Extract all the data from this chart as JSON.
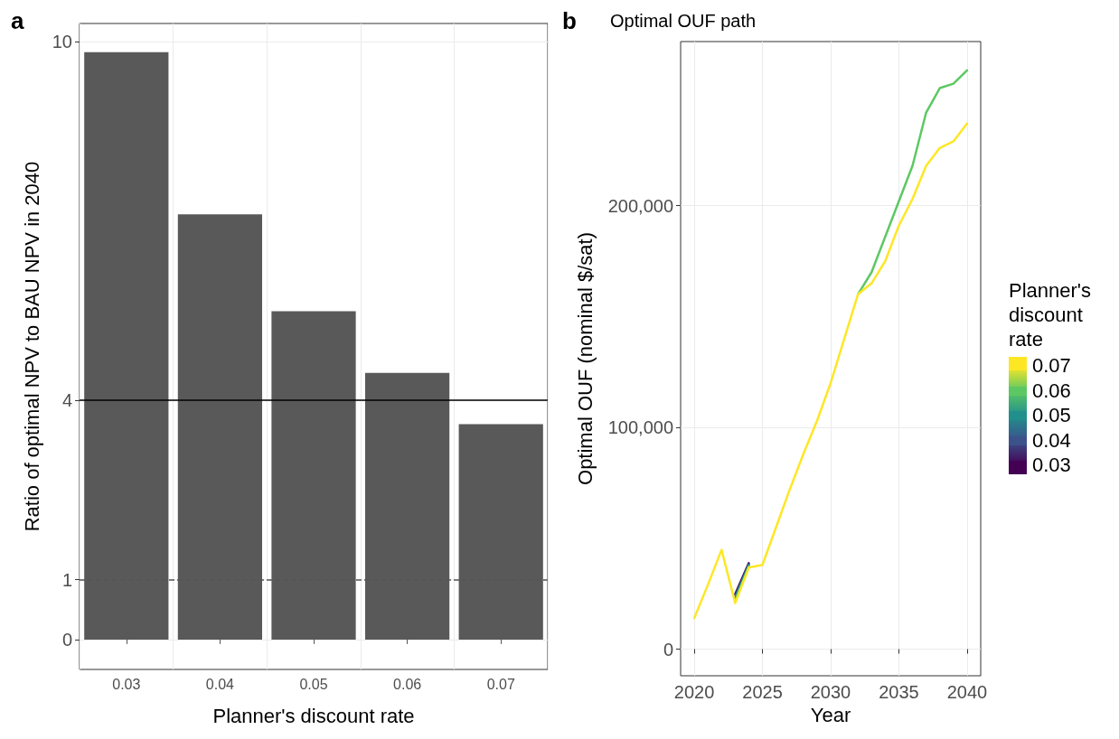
{
  "chart_data": [
    {
      "type": "bar",
      "annotations": [
        "a"
      ],
      "xlabel": "Planner's discount rate",
      "ylabel": "Ratio of optimal NPV to BAU NPV in 2040",
      "categories": [
        "0.03",
        "0.04",
        "0.05",
        "0.06",
        "0.07"
      ],
      "values": [
        9.82,
        7.11,
        5.49,
        4.46,
        3.6
      ],
      "color": "#595959",
      "ylim": [
        -0.5,
        10.3
      ],
      "yticks": [
        0,
        1,
        4,
        10
      ],
      "grid": true,
      "ref_lines": [
        {
          "axis": "y",
          "value": 4,
          "color": "#000000",
          "line_style": "solid"
        },
        {
          "axis": "y",
          "value": 1,
          "color": "#555555",
          "line_style": "dashed"
        }
      ]
    },
    {
      "type": "line",
      "annotations": [
        "b"
      ],
      "title": "Optimal OUF path",
      "xlabel": "Year",
      "ylabel": "Optimal OUF (nominal $/sat)",
      "legend_title": "Planner's discount rate",
      "legend": "right",
      "grid": true,
      "line_style": "solid",
      "marker": "none",
      "x": [
        2020,
        2021,
        2022,
        2023,
        2024,
        2025,
        2026,
        2027,
        2028,
        2029,
        2030,
        2031,
        2032,
        2033,
        2034,
        2035,
        2036,
        2037,
        2038,
        2039,
        2040
      ],
      "xlim": [
        2019,
        2041
      ],
      "xticks": [
        2020,
        2025,
        2030,
        2035,
        2040
      ],
      "ylim": [
        -12000,
        274000
      ],
      "yticks": [
        0,
        {
          "value": 100000,
          "label": "100,000"
        },
        {
          "value": 200000,
          "label": "200,000"
        }
      ],
      "series": [
        {
          "name": "0.03",
          "color": "#440154",
          "values": [
            null,
            null,
            null,
            24800,
            38800,
            null,
            null,
            null,
            null,
            null,
            null,
            null,
            null,
            null,
            null,
            null,
            null,
            null,
            null,
            null,
            null
          ]
        },
        {
          "name": "0.04",
          "color": "#3b528b",
          "values": [
            null,
            null,
            null,
            23800,
            38300,
            null,
            null,
            null,
            null,
            null,
            null,
            null,
            null,
            null,
            null,
            null,
            null,
            null,
            null,
            null,
            null
          ]
        },
        {
          "name": "0.05",
          "color": "#21908c",
          "values": [
            null,
            null,
            null,
            22800,
            37800,
            null,
            null,
            null,
            null,
            null,
            null,
            null,
            null,
            null,
            null,
            null,
            null,
            null,
            null,
            null,
            null
          ]
        },
        {
          "name": "0.06",
          "color": "#5dc863",
          "values": [
            null,
            null,
            null,
            21800,
            37300,
            null,
            null,
            null,
            null,
            null,
            null,
            null,
            160000,
            170000,
            186000,
            202000,
            218000,
            242000,
            253000,
            255000,
            261000
          ]
        },
        {
          "name": "0.07",
          "color": "#fde725",
          "values": [
            14000,
            29000,
            44800,
            20800,
            36800,
            38000,
            55000,
            72000,
            88000,
            103000,
            120000,
            140000,
            160000,
            165000,
            175000,
            191000,
            203000,
            218000,
            226000,
            229000,
            237000
          ]
        }
      ]
    }
  ]
}
